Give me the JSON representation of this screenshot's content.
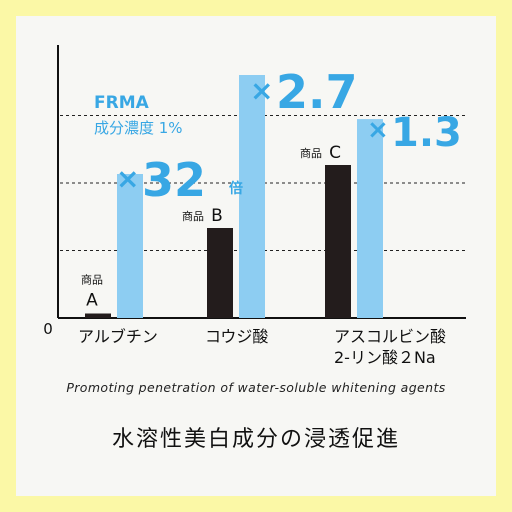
{
  "chart_data": {
    "type": "bar",
    "categories": [
      "アルブチン",
      "コウジ酸",
      "アスコルビン酸\n2-リン酸２Na"
    ],
    "category_lines": [
      [
        "アルブチン"
      ],
      [
        "コウジ酸"
      ],
      [
        "アスコルビン酸",
        "2-リン酸２Na"
      ]
    ],
    "product_labels": [
      {
        "prefix": "商品",
        "letter": "A"
      },
      {
        "prefix": "商品",
        "letter": "B"
      },
      {
        "prefix": "商品",
        "letter": "C"
      }
    ],
    "series": [
      {
        "values": [
          0.05,
          1.0,
          1.7
        ],
        "color": "#231c1c"
      },
      {
        "values": [
          1.6,
          2.7,
          2.21
        ],
        "color": "#8dcdf2"
      }
    ],
    "multipliers": [
      {
        "x": "×",
        "n": "32",
        "suffix": "倍"
      },
      {
        "x": "×",
        "n": "2.7",
        "suffix": ""
      },
      {
        "x": "×",
        "n": "1.3",
        "suffix": ""
      }
    ],
    "annotation_frma": "FRMA",
    "annotation_conc": "成分濃度 1%",
    "zero_label": "0",
    "ylim": [
      0,
      3.0
    ],
    "grid": true,
    "subtitle_en": "Promoting penetration of water-soluble whitening agents",
    "title_jp": "水溶性美白成分の浸透促進"
  },
  "colors": {
    "border": "#fbf8a6",
    "background": "#f7f7f4",
    "dark_bar": "#231c1c",
    "light_bar": "#8dcdf2",
    "accent": "#38a7e4"
  }
}
